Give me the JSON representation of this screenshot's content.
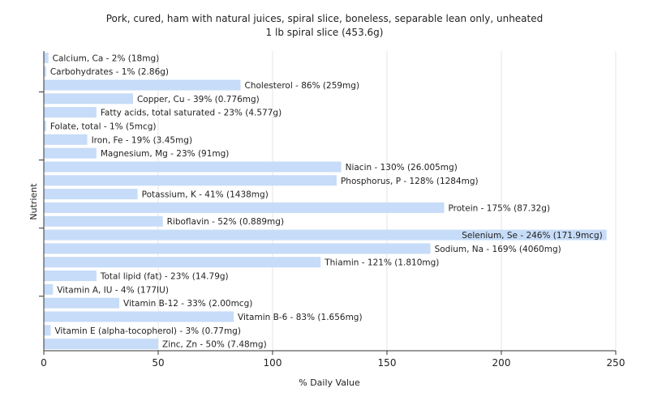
{
  "chart_data": {
    "type": "bar",
    "orientation": "horizontal",
    "title": "Pork, cured, ham with natural juices, spiral slice, boneless, separable lean only, unheated",
    "subtitle": "1 lb spiral slice (453.6g)",
    "xlabel": "% Daily Value",
    "ylabel": "Nutrient",
    "xlim": [
      0,
      250
    ],
    "xticks": [
      "0",
      "50",
      "100",
      "150",
      "200",
      "250"
    ],
    "grid": true,
    "bar_color": "#c6dcf8",
    "categories": [
      "Calcium, Ca",
      "Carbohydrates",
      "Cholesterol",
      "Copper, Cu",
      "Fatty acids, total saturated",
      "Folate, total",
      "Iron, Fe",
      "Magnesium, Mg",
      "Niacin",
      "Phosphorus, P",
      "Potassium, K",
      "Protein",
      "Riboflavin",
      "Selenium, Se",
      "Sodium, Na",
      "Thiamin",
      "Total lipid (fat)",
      "Vitamin A, IU",
      "Vitamin B-12",
      "Vitamin B-6",
      "Vitamin E (alpha-tocopherol)",
      "Zinc, Zn"
    ],
    "values": [
      2,
      1,
      86,
      39,
      23,
      1,
      19,
      23,
      130,
      128,
      41,
      175,
      52,
      246,
      169,
      121,
      23,
      4,
      33,
      83,
      3,
      50
    ],
    "labels": [
      "Calcium, Ca - 2% (18mg)",
      "Carbohydrates - 1% (2.86g)",
      "Cholesterol - 86% (259mg)",
      "Copper, Cu - 39% (0.776mg)",
      "Fatty acids, total saturated - 23% (4.577g)",
      "Folate, total - 1% (5mcg)",
      "Iron, Fe - 19% (3.45mg)",
      "Magnesium, Mg - 23% (91mg)",
      "Niacin - 130% (26.005mg)",
      "Phosphorus, P - 128% (1284mg)",
      "Potassium, K - 41% (1438mg)",
      "Protein - 175% (87.32g)",
      "Riboflavin - 52% (0.889mg)",
      "Selenium, Se - 246% (171.9mcg)",
      "Sodium, Na - 169% (4060mg)",
      "Thiamin - 121% (1.810mg)",
      "Total lipid (fat) - 23% (14.79g)",
      "Vitamin A, IU - 4% (177IU)",
      "Vitamin B-12 - 33% (2.00mcg)",
      "Vitamin B-6 - 83% (1.656mg)",
      "Vitamin E (alpha-tocopherol) - 3% (0.77mg)",
      "Zinc, Zn - 50% (7.48mg)"
    ]
  }
}
